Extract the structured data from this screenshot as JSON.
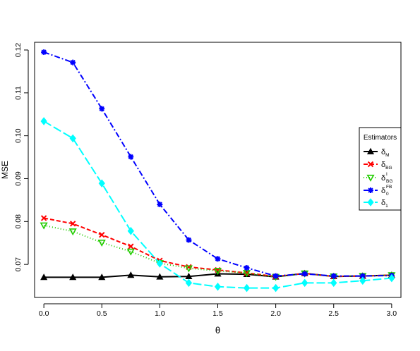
{
  "chart_data": {
    "type": "line",
    "xlabel": "θ",
    "ylabel": "MSE",
    "xlim": [
      -0.08,
      3.08
    ],
    "ylim": [
      0.0623,
      0.1218
    ],
    "xticks": [
      0.0,
      0.5,
      1.0,
      1.5,
      2.0,
      2.5,
      3.0
    ],
    "xtick_labels": [
      "0.0",
      "0.5",
      "1.0",
      "1.5",
      "2.0",
      "2.5",
      "3.0"
    ],
    "yticks": [
      0.07,
      0.08,
      0.09,
      0.1,
      0.11,
      0.12
    ],
    "ytick_labels": [
      "0.07",
      "0.08",
      "0.09",
      "0.10",
      "0.11",
      "0.12"
    ],
    "grid": false,
    "legend": {
      "title": "Estimators",
      "placement": "right",
      "entries": [
        {
          "base": "δ",
          "sub": "M",
          "sup": ""
        },
        {
          "base": "δ",
          "sub": "BG",
          "sup": ""
        },
        {
          "base": "δ",
          "sub": "BG",
          "sup": "I"
        },
        {
          "base": "δ",
          "sub": "0",
          "sup": "FB"
        },
        {
          "base": "δ",
          "sub": "1",
          "sup": ""
        }
      ]
    },
    "x": [
      0.0,
      0.25,
      0.5,
      0.75,
      1.0,
      1.25,
      1.5,
      1.75,
      2.0,
      2.25,
      2.5,
      2.75,
      3.0
    ],
    "series": [
      {
        "name": "δM",
        "color": "#000000",
        "marker": "triangle",
        "dash": "",
        "values": [
          0.067,
          0.067,
          0.067,
          0.0675,
          0.0671,
          0.0672,
          0.0678,
          0.0677,
          0.0671,
          0.0679,
          0.0672,
          0.0673,
          0.0675
        ]
      },
      {
        "name": "δBG",
        "color": "#ff0000",
        "marker": "x",
        "dash": "6,3",
        "values": [
          0.0808,
          0.0795,
          0.0769,
          0.0742,
          0.0709,
          0.0694,
          0.0687,
          0.068,
          0.0672,
          0.0679,
          0.0672,
          0.0673,
          0.0675
        ]
      },
      {
        "name": "δBGI",
        "color": "#22cc00",
        "marker": "triangle-down",
        "dash": "1,3",
        "values": [
          0.0791,
          0.0777,
          0.0751,
          0.073,
          0.0703,
          0.0691,
          0.0685,
          0.068,
          0.0671,
          0.0679,
          0.0672,
          0.0673,
          0.0675
        ]
      },
      {
        "name": "δ0FB",
        "color": "#0000ff",
        "marker": "star",
        "dash": "8,3,2,3",
        "values": [
          0.1195,
          0.1171,
          0.1063,
          0.0951,
          0.084,
          0.0757,
          0.0713,
          0.0692,
          0.0673,
          0.0678,
          0.0673,
          0.0673,
          0.0674
        ]
      },
      {
        "name": "δ1",
        "color": "#00ffff",
        "marker": "diamond",
        "dash": "12,4",
        "values": [
          0.1034,
          0.0994,
          0.0889,
          0.0778,
          0.0702,
          0.0657,
          0.0648,
          0.0645,
          0.0645,
          0.0657,
          0.0657,
          0.0662,
          0.0668
        ]
      }
    ]
  }
}
